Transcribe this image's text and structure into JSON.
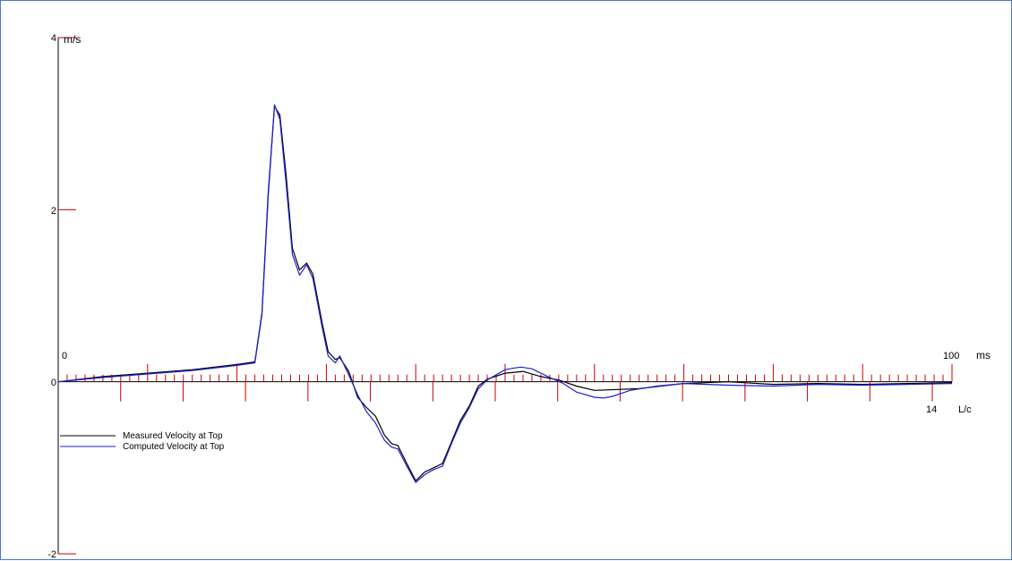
{
  "chart_data": {
    "type": "line",
    "x_unit": "ms",
    "y_unit": "m/s",
    "secondary_x_unit": "L/c",
    "xlim": [
      0,
      100
    ],
    "ylim": [
      -2,
      4
    ],
    "secondary_xlim": [
      0,
      14
    ],
    "y_tick_labels": [
      "4",
      "2",
      "0",
      "-2"
    ],
    "x_tick_labels": [
      "0",
      "100"
    ],
    "secondary_x_tick_labels": [
      "14"
    ],
    "grid": false,
    "legend_position": "bottom-left",
    "colors": {
      "axes": "#000000",
      "ticks": "#cc0000",
      "measured": "#000000",
      "computed": "#1f1fd6",
      "frame": "#4a78c8"
    },
    "series": [
      {
        "name": "Measured Velocity at Top",
        "x": [
          0,
          5,
          10,
          15,
          20,
          22,
          22.8,
          23.5,
          24.2,
          24.8,
          25.5,
          26.2,
          27,
          27.8,
          28.5,
          29.5,
          30.2,
          31,
          31.5,
          32.5,
          33.5,
          34.5,
          35.5,
          36.5,
          37.3,
          38,
          39,
          40,
          41,
          42,
          43,
          44,
          45,
          46,
          47,
          48,
          50,
          52,
          54,
          56,
          58,
          60,
          65,
          70,
          75,
          80,
          85,
          90,
          95,
          100
        ],
        "y": [
          0,
          0.06,
          0.1,
          0.14,
          0.2,
          0.23,
          0.8,
          2.2,
          3.2,
          3.1,
          2.4,
          1.55,
          1.3,
          1.38,
          1.25,
          0.7,
          0.35,
          0.26,
          0.28,
          0.12,
          -0.18,
          -0.3,
          -0.4,
          -0.62,
          -0.72,
          -0.74,
          -0.95,
          -1.15,
          -1.05,
          -1.0,
          -0.95,
          -0.7,
          -0.45,
          -0.28,
          -0.05,
          0.03,
          0.1,
          0.12,
          0.06,
          0.02,
          -0.05,
          -0.1,
          -0.08,
          -0.02,
          0.0,
          -0.03,
          -0.02,
          -0.03,
          -0.02,
          -0.01
        ]
      },
      {
        "name": "Computed Velocity at Top",
        "x": [
          0,
          5,
          10,
          15,
          20,
          22,
          22.8,
          23.5,
          24.2,
          24.8,
          25.5,
          26.2,
          27,
          27.8,
          28.5,
          29.5,
          30.2,
          31,
          31.5,
          32.5,
          33.5,
          34.5,
          35.5,
          36.5,
          37.3,
          38,
          39,
          40,
          41,
          42,
          43,
          44,
          45,
          46,
          47,
          48,
          50,
          51,
          51.8,
          53,
          55,
          56.5,
          58,
          60,
          61,
          62,
          64,
          67,
          70,
          75,
          80,
          85,
          90,
          95,
          100
        ],
        "y": [
          0,
          0.05,
          0.09,
          0.13,
          0.19,
          0.22,
          0.78,
          2.15,
          3.22,
          3.05,
          2.3,
          1.48,
          1.24,
          1.36,
          1.2,
          0.65,
          0.3,
          0.22,
          0.3,
          0.08,
          -0.15,
          -0.35,
          -0.48,
          -0.68,
          -0.76,
          -0.78,
          -0.98,
          -1.17,
          -1.08,
          -1.02,
          -0.98,
          -0.72,
          -0.48,
          -0.3,
          -0.08,
          0.02,
          0.14,
          0.16,
          0.17,
          0.15,
          0.05,
          -0.02,
          -0.12,
          -0.18,
          -0.19,
          -0.17,
          -0.1,
          -0.05,
          -0.02,
          -0.04,
          -0.05,
          -0.03,
          -0.04,
          -0.03,
          -0.02
        ]
      }
    ]
  }
}
